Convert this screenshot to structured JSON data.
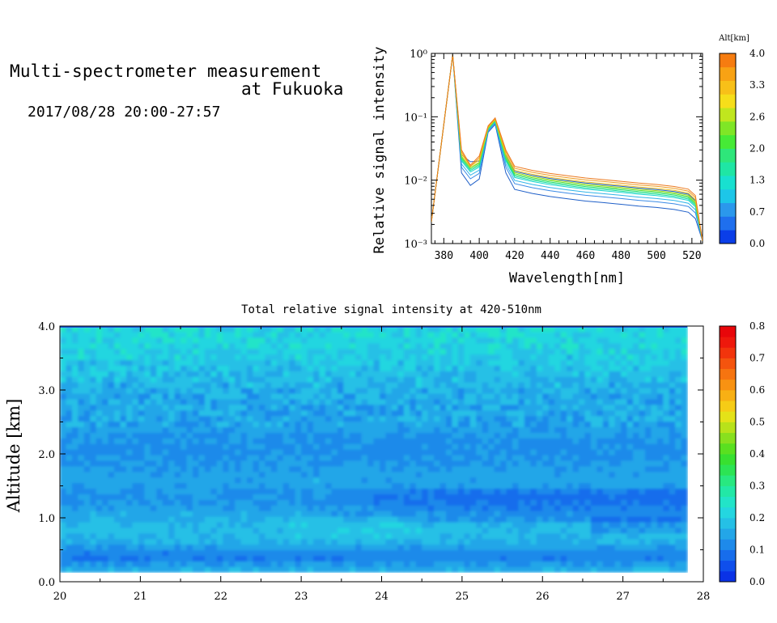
{
  "header": {
    "title_line1": "Multi-spectrometer measurement",
    "title_line2": "at Fukuoka",
    "datetime": "2017/08/28 20:00-27:57"
  },
  "chart_data": [
    {
      "type": "line",
      "title": "",
      "xlabel": "Wavelength[nm]",
      "ylabel": "Relative signal intensity",
      "yscale": "log",
      "xlim": [
        373,
        526
      ],
      "ylim": [
        0.001,
        1
      ],
      "x_ticks": [
        380,
        400,
        420,
        440,
        460,
        480,
        500,
        520
      ],
      "y_tick_labels": [
        "10⁻³",
        "10⁻²",
        "10⁻¹",
        "10⁰"
      ],
      "x": [
        373,
        385,
        390,
        395,
        400,
        405,
        409,
        415,
        420,
        430,
        440,
        450,
        460,
        470,
        480,
        490,
        500,
        510,
        518,
        522,
        526
      ],
      "base_profile": [
        0.0022,
        0.95,
        0.02,
        0.015,
        0.016,
        0.06,
        0.08,
        0.02,
        0.011,
        0.0095,
        0.0085,
        0.0078,
        0.0072,
        0.0068,
        0.0064,
        0.006,
        0.0057,
        0.0053,
        0.0048,
        0.0038,
        0.0011
      ],
      "series": [
        {
          "altitude_km": 0.2,
          "color": "#1f5fc8",
          "scale": 0.65,
          "dip": 0.55
        },
        {
          "altitude_km": 0.4,
          "color": "#1e5fd6",
          "scale": 1.25,
          "dip": 1.3
        },
        {
          "altitude_km": 0.7,
          "color": "#3a8ae6",
          "scale": 0.8,
          "dip": 0.7
        },
        {
          "altitude_km": 1.0,
          "color": "#2fb4e8",
          "scale": 0.9,
          "dip": 0.8
        },
        {
          "altitude_km": 1.2,
          "color": "#22d6d0",
          "scale": 1.0,
          "dip": 0.9
        },
        {
          "altitude_km": 1.4,
          "color": "#21e0a0",
          "scale": 1.05,
          "dip": 0.95
        },
        {
          "altitude_km": 1.7,
          "color": "#2ee070",
          "scale": 1.1,
          "dip": 1.0
        },
        {
          "altitude_km": 2.0,
          "color": "#60e040",
          "scale": 1.15,
          "dip": 1.05
        },
        {
          "altitude_km": 2.4,
          "color": "#a8dc20",
          "scale": 1.2,
          "dip": 1.05
        },
        {
          "altitude_km": 2.8,
          "color": "#f0c020",
          "scale": 1.3,
          "dip": 1.1
        },
        {
          "altitude_km": 3.2,
          "color": "#ee9b20",
          "scale": 1.4,
          "dip": 1.1
        },
        {
          "altitude_km": 3.7,
          "color": "#ec7a20",
          "scale": 1.5,
          "dip": 1.15
        }
      ],
      "colorbar": {
        "title": "Alt[km]",
        "tick_labels": [
          "0.0",
          "0.7",
          "1.3",
          "2.0",
          "2.6",
          "3.3",
          "4.0"
        ],
        "colors": [
          "#0a3ee8",
          "#1f6fee",
          "#2b98ec",
          "#1dc6e8",
          "#18e0d0",
          "#1fe6a4",
          "#2ee67a",
          "#46ea36",
          "#7fe626",
          "#c0e61e",
          "#f6de1a",
          "#f8c018",
          "#f8a214",
          "#f67c10"
        ]
      }
    },
    {
      "type": "heatmap",
      "title": "Total relative signal intensity at 420-510nm",
      "xlabel": "",
      "ylabel": "Altitude [km]",
      "xlim": [
        20,
        28
      ],
      "ylim": [
        0.0,
        4.0
      ],
      "data_x_range": [
        20.0,
        27.8
      ],
      "data_y_range": [
        0.15,
        4.0
      ],
      "x_tick_labels": [
        "20",
        "21",
        "22",
        "23",
        "24",
        "25",
        "26",
        "27",
        "28"
      ],
      "y_tick_labels": [
        "0.0",
        "1.0",
        "2.0",
        "3.0",
        "4.0"
      ],
      "value_bands": [
        {
          "alt_km": 0.15,
          "value": 0.17
        },
        {
          "alt_km": 0.4,
          "value": 0.1
        },
        {
          "alt_km": 0.6,
          "value": 0.16
        },
        {
          "alt_km": 0.8,
          "value": 0.18
        },
        {
          "alt_km": 1.1,
          "value": 0.15
        },
        {
          "alt_km": 1.3,
          "value": 0.12
        },
        {
          "alt_km": 1.6,
          "value": 0.15
        },
        {
          "alt_km": 2.1,
          "value": 0.12
        },
        {
          "alt_km": 2.5,
          "value": 0.15
        },
        {
          "alt_km": 3.0,
          "value": 0.16
        },
        {
          "alt_km": 3.5,
          "value": 0.2
        },
        {
          "alt_km": 3.9,
          "value": 0.22
        }
      ],
      "colorbar": {
        "tick_labels": [
          "0.0",
          "0.1",
          "0.2",
          "0.3",
          "0.4",
          "0.5",
          "0.6",
          "0.7",
          "0.8"
        ],
        "colors": [
          "#0a32e6",
          "#0f4fec",
          "#176dec",
          "#1e8aea",
          "#23a6e8",
          "#25c0e6",
          "#24d6e0",
          "#22e4c8",
          "#22e8a6",
          "#28e880",
          "#2ce454",
          "#38e030",
          "#5ae020",
          "#88e01e",
          "#b8e21a",
          "#e4e218",
          "#f6cc16",
          "#f8b014",
          "#f89212",
          "#f67410",
          "#f4540e",
          "#f2340c",
          "#ee180c",
          "#e8060a"
        ]
      }
    }
  ]
}
